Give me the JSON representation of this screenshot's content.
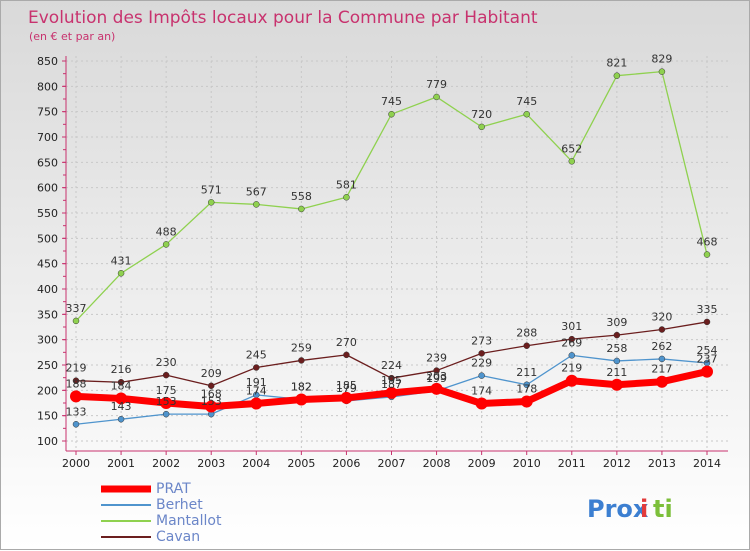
{
  "chart_data": {
    "type": "line",
    "title": "Evolution des Impôts locaux pour la Commune par Habitant",
    "subtitle": "(en € et par an)",
    "x": [
      "2000",
      "2001",
      "2002",
      "2003",
      "2004",
      "2005",
      "2006",
      "2007",
      "2008",
      "2009",
      "2010",
      "2011",
      "2012",
      "2013",
      "2014"
    ],
    "ylim": [
      100,
      850
    ],
    "yticks": [
      100,
      150,
      200,
      250,
      300,
      350,
      400,
      450,
      500,
      550,
      600,
      650,
      700,
      750,
      800,
      850
    ],
    "grid": true,
    "legend_position": "bottom-left",
    "series": [
      {
        "name": "PRAT",
        "color": "#ff0000",
        "values": [
          188,
          184,
          175,
          168,
          174,
          182,
          185,
          195,
          203,
          174,
          178,
          219,
          211,
          217,
          237
        ]
      },
      {
        "name": "Berhet",
        "color": "#4f94cd",
        "values": [
          133,
          143,
          153,
          153,
          191,
          182,
          179,
          187,
          199,
          229,
          211,
          269,
          258,
          262,
          254
        ]
      },
      {
        "name": "Mantallot",
        "color": "#8fd14f",
        "values": [
          337,
          431,
          488,
          571,
          567,
          558,
          581,
          745,
          779,
          720,
          745,
          652,
          821,
          829,
          468
        ]
      },
      {
        "name": "Cavan",
        "color": "#6b1e1e",
        "values": [
          219,
          216,
          230,
          209,
          245,
          259,
          270,
          224,
          239,
          273,
          288,
          301,
          309,
          320,
          335
        ]
      }
    ]
  },
  "brand": {
    "logo_text": "Prox",
    "logo_text2": "i",
    "logo_text3": "ti"
  }
}
